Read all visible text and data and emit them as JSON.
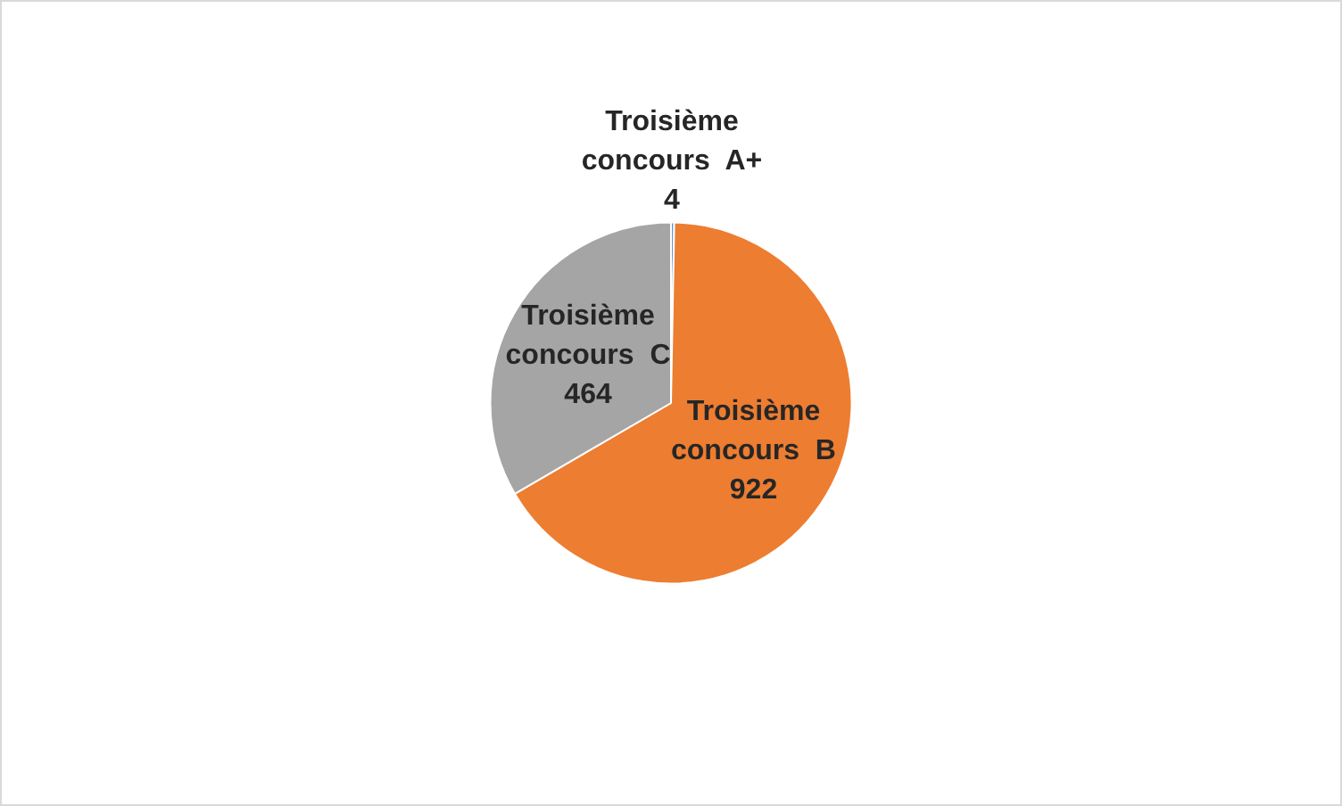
{
  "chart_data": {
    "type": "pie",
    "categories": [
      "Troisième concours  A+",
      "Troisième concours  B",
      "Troisième concours  C"
    ],
    "values": [
      4,
      922,
      464
    ],
    "colors": [
      "#5b9bd5",
      "#ed7d31",
      "#a5a5a5"
    ],
    "data_labels": true,
    "legend": false
  }
}
